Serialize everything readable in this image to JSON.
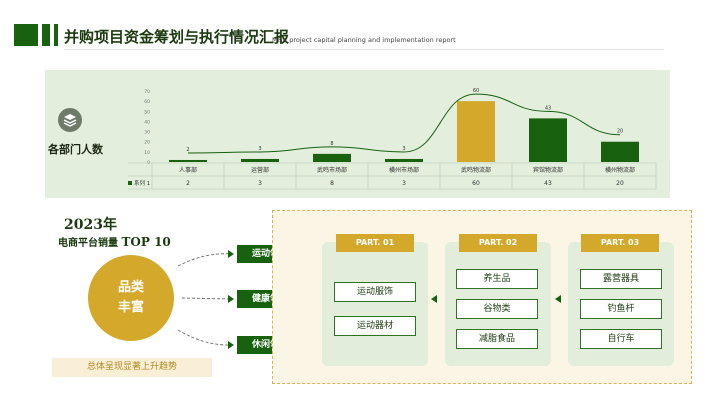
{
  "header": {
    "title": "并购项目资金筹划与执行情况汇报",
    "subtitle": "M&A project capital planning and implementation report"
  },
  "chart_panel": {
    "label": "各部门人数",
    "icon": "layers-icon"
  },
  "chart_data": {
    "type": "bar",
    "categories": [
      "人事部",
      "运营部",
      "武鸣市场部",
      "横州市场部",
      "武鸣物流部",
      "宾馆物流部",
      "横州物流部"
    ],
    "series": [
      {
        "name": "系列 1",
        "values": [
          2,
          3,
          8,
          3,
          60,
          43,
          20
        ]
      }
    ],
    "y_ticks": [
      "0",
      "10",
      "20",
      "30",
      "40",
      "50",
      "60",
      "70"
    ],
    "ylim": [
      0,
      70
    ],
    "highlight_index": 4,
    "trend_line": true,
    "data_table": true,
    "colors": {
      "bar": "#17610f",
      "highlight": "#d4a82b",
      "trend": "#17610f"
    }
  },
  "left": {
    "year": "2023年",
    "top10_prefix": "电商平台销量",
    "top10_suffix": "TOP 10",
    "circle_line1": "品类",
    "circle_line2": "丰富",
    "trend": "总体呈现显著上升趋势"
  },
  "domains": [
    "运动领域",
    "健康领域",
    "休闲领域"
  ],
  "parts": [
    {
      "label": "PART. 01",
      "items": [
        "运动服饰",
        "运动器材"
      ]
    },
    {
      "label": "PART. 02",
      "items": [
        "养生品",
        "谷物类",
        "减脂食品"
      ]
    },
    {
      "label": "PART. 03",
      "items": [
        "露营器具",
        "钓鱼杆",
        "自行车"
      ]
    }
  ],
  "colors": {
    "primary": "#17610f",
    "gold": "#d4a82b",
    "panel": "#e3eedd"
  }
}
